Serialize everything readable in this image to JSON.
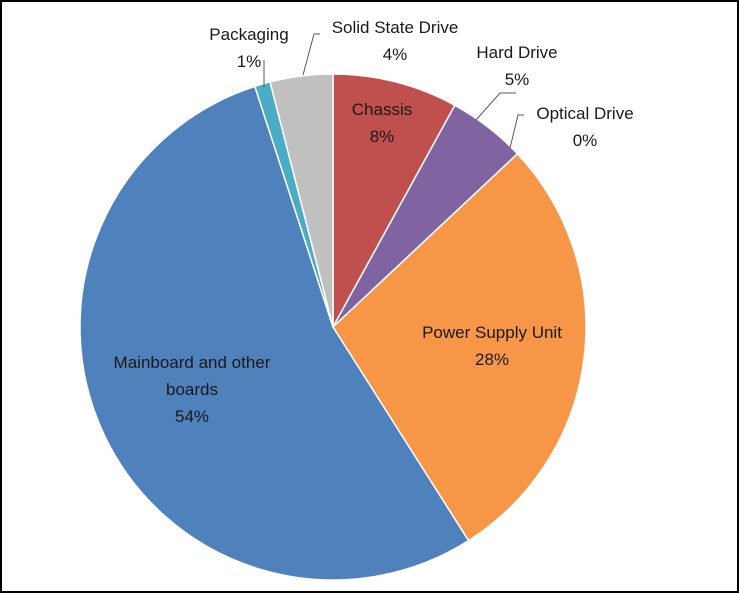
{
  "chart_data": {
    "type": "pie",
    "title": "",
    "slices": [
      {
        "label": "Chassis",
        "value": 8,
        "value_label": "8%",
        "color": "#c0504d"
      },
      {
        "label": "Hard Drive",
        "value": 5,
        "value_label": "5%",
        "color": "#8064a2"
      },
      {
        "label": "Optical Drive",
        "value": 0,
        "value_label": "0%",
        "color": "#4bacc6"
      },
      {
        "label": "Power Supply Unit",
        "value": 28,
        "value_label": "28%",
        "color": "#f79646"
      },
      {
        "label": "Mainboard and other boards",
        "value": 54,
        "value_label": "54%",
        "color": "#4f81bd"
      },
      {
        "label": "Packaging",
        "value": 1,
        "value_label": "1%",
        "color": "#4bacc6"
      },
      {
        "label": "Solid State Drive",
        "value": 4,
        "value_label": "4%",
        "color": "#c0c0c0"
      }
    ],
    "start_angle_deg": 0,
    "direction": "clockwise",
    "legend": "none",
    "colors": {
      "background": "#ffffff",
      "border": "#000000",
      "slice_stroke": "#ffffff",
      "leader_line": "#595959",
      "text": "#1a1a1a"
    }
  }
}
